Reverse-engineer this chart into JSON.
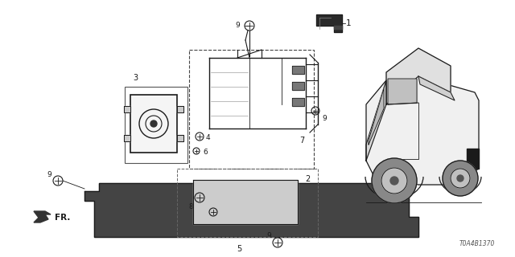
{
  "bg_color": "#ffffff",
  "line_color": "#1a1a1a",
  "text_color": "#1a1a1a",
  "diagram_id": "T0A4B1370",
  "figsize": [
    6.4,
    3.2
  ],
  "dpi": 100
}
